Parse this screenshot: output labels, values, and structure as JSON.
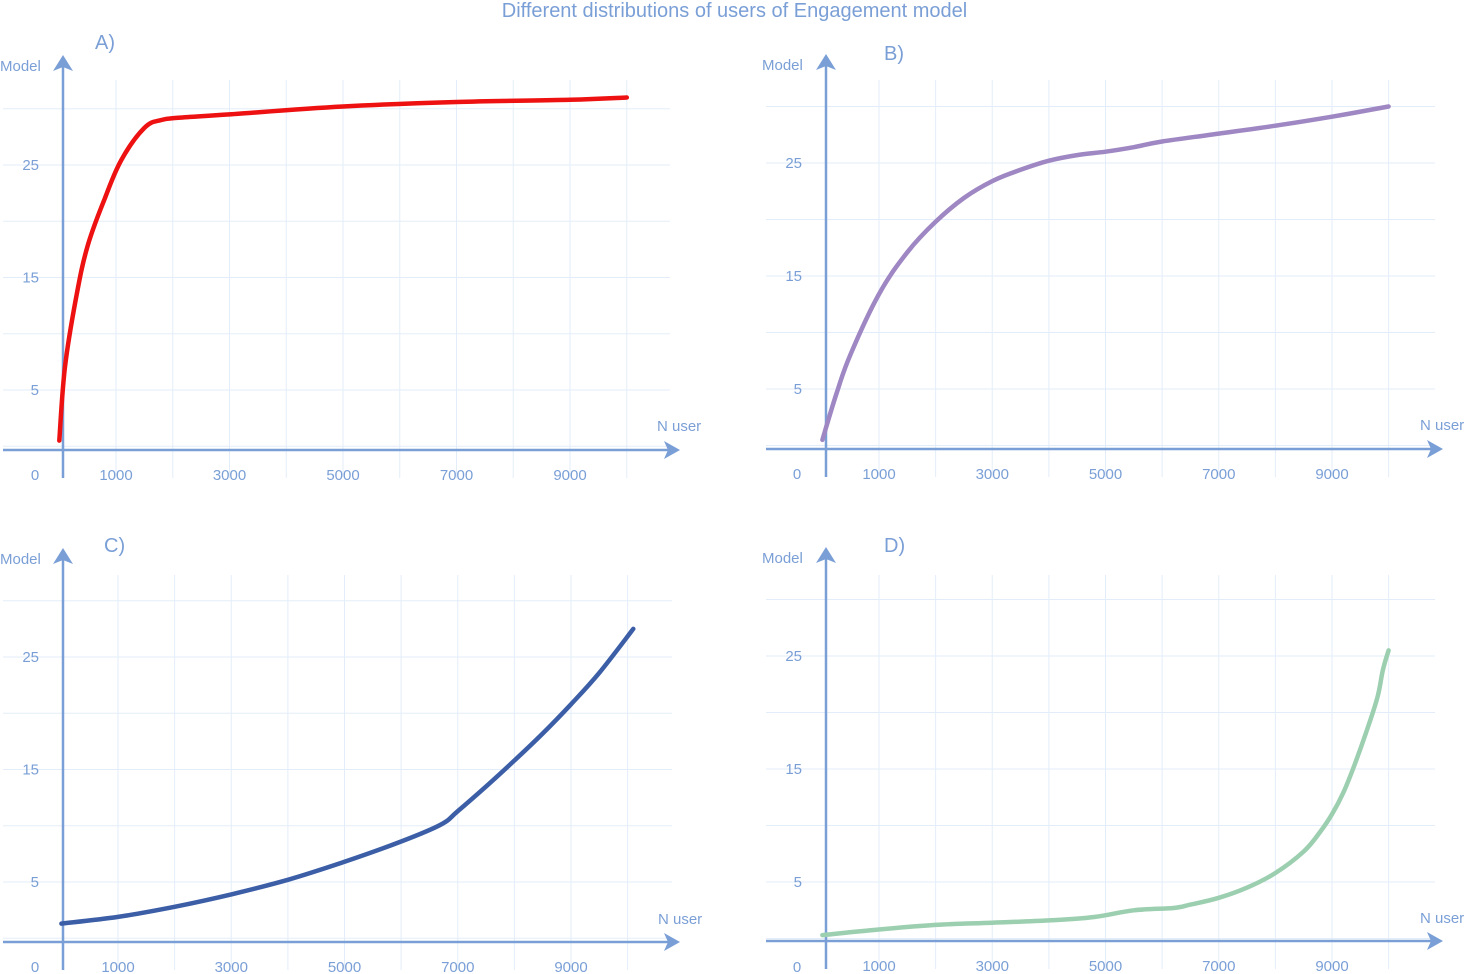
{
  "page": {
    "title": "Different distributions of users of Engagement model"
  },
  "colors": {
    "axis": "#7a9fd6",
    "grid": "#e3edf9",
    "text": "#7a9fd6"
  },
  "chart_data": [
    {
      "type": "line",
      "panel": "A)",
      "xlabel": "N user",
      "ylabel": "Model",
      "origin_label": "0",
      "x_ticks": [
        1000,
        3000,
        5000,
        7000,
        9000
      ],
      "y_ticks": [
        5,
        15,
        25
      ],
      "xlim": [
        0,
        10800
      ],
      "ylim": [
        -2,
        35
      ],
      "grid": true,
      "series": [
        {
          "color": "#ee1111",
          "x": [
            0,
            100,
            300,
            500,
            800,
            1100,
            1500,
            1800,
            2100,
            3000,
            5000,
            7000,
            9000,
            10000
          ],
          "y": [
            0.5,
            7,
            13.3,
            17.8,
            22,
            25.5,
            28.3,
            29,
            29.2,
            29.5,
            30.2,
            30.6,
            30.8,
            31
          ]
        }
      ]
    },
    {
      "type": "line",
      "panel": "B)",
      "xlabel": "N user",
      "ylabel": "Model",
      "origin_label": "0",
      "x_ticks": [
        1000,
        3000,
        5000,
        7000,
        9000
      ],
      "y_ticks": [
        5,
        15,
        25
      ],
      "xlim": [
        0,
        10800
      ],
      "ylim": [
        -2,
        35
      ],
      "grid": true,
      "series": [
        {
          "color": "#9e87c2",
          "x": [
            0,
            250,
            500,
            1000,
            1500,
            2000,
            2500,
            3000,
            3500,
            4000,
            4500,
            5000,
            5500,
            6000,
            7000,
            8000,
            9000,
            10000
          ],
          "y": [
            0.5,
            4.6,
            8.1,
            13.4,
            17.1,
            19.8,
            21.9,
            23.4,
            24.4,
            25.2,
            25.7,
            26,
            26.4,
            26.9,
            27.6,
            28.3,
            29.1,
            30
          ]
        }
      ]
    },
    {
      "type": "line",
      "panel": "C)",
      "xlabel": "N user",
      "ylabel": "Model",
      "origin_label": "0",
      "x_ticks": [
        1000,
        3000,
        5000,
        7000,
        9000
      ],
      "y_ticks": [
        5,
        15,
        25
      ],
      "xlim": [
        0,
        10800
      ],
      "ylim": [
        -2,
        35
      ],
      "grid": true,
      "series": [
        {
          "color": "#3b5ea6",
          "x": [
            0,
            1000,
            2000,
            3000,
            4000,
            5000,
            6000,
            6700,
            7000,
            7500,
            8000,
            8500,
            9000,
            9500,
            10100
          ],
          "y": [
            1.3,
            1.9,
            2.8,
            3.9,
            5.2,
            6.8,
            8.6,
            10.1,
            11.3,
            13.5,
            15.8,
            18.2,
            20.8,
            23.6,
            27.5
          ]
        }
      ]
    },
    {
      "type": "line",
      "panel": "D)",
      "xlabel": "N user",
      "ylabel": "Model",
      "origin_label": "0",
      "x_ticks": [
        1000,
        3000,
        5000,
        7000,
        9000
      ],
      "y_ticks": [
        5,
        15,
        25
      ],
      "xlim": [
        0,
        10800
      ],
      "ylim": [
        -2,
        35
      ],
      "grid": true,
      "series": [
        {
          "color": "#9ccfb0",
          "x": [
            0,
            1000,
            2000,
            3000,
            4000,
            4800,
            5500,
            6200,
            6500,
            7000,
            7500,
            8000,
            8500,
            8800,
            9000,
            9200,
            9400,
            9600,
            9800,
            9900,
            10000
          ],
          "y": [
            0.3,
            0.8,
            1.2,
            1.4,
            1.6,
            1.9,
            2.5,
            2.7,
            3,
            3.6,
            4.5,
            5.8,
            7.7,
            9.5,
            11,
            12.9,
            15.4,
            18.2,
            21.3,
            23.8,
            25.5
          ]
        }
      ]
    }
  ]
}
